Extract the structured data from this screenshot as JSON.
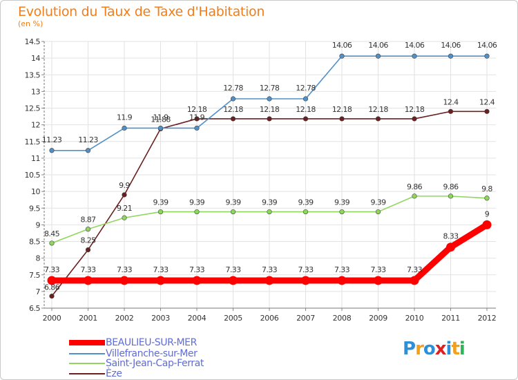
{
  "title": "Evolution du Taux de Taxe d'Habitation",
  "unit_label": "(en %)",
  "logo_text": "Proxiti",
  "chart_data": {
    "type": "line",
    "title": "Evolution du Taux de Taxe d'Habitation",
    "ylabel": "(en %)",
    "xlabel": "",
    "x": [
      "2000",
      "2001",
      "2002",
      "2003",
      "2004",
      "2005",
      "2006",
      "2007",
      "2008",
      "2009",
      "2010",
      "2011",
      "2012"
    ],
    "ylim": [
      6.5,
      14.5
    ],
    "yticks": [
      "6.5",
      "7",
      "7.5",
      "8",
      "8.5",
      "9",
      "9.5",
      "10",
      "10.5",
      "11",
      "11.5",
      "12",
      "12.5",
      "13",
      "13.5",
      "14",
      "14.5"
    ],
    "grid": true,
    "legend_position": "bottom-left",
    "series": [
      {
        "name": "BEAULIEU-SUR-MER",
        "color": "#ff0000",
        "values": [
          7.33,
          7.33,
          7.33,
          7.33,
          7.33,
          7.33,
          7.33,
          7.33,
          7.33,
          7.33,
          7.33,
          8.33,
          9
        ],
        "labels": [
          "7.33",
          "7.33",
          "7.33",
          "7.33",
          "7.33",
          "7.33",
          "7.33",
          "7.33",
          "7.33",
          "7.33",
          "7.33",
          "8.33",
          "9"
        ]
      },
      {
        "name": "Villefranche-sur-Mer",
        "color": "#4f90c9",
        "values": [
          11.23,
          11.23,
          11.9,
          11.9,
          11.9,
          12.78,
          12.78,
          12.78,
          14.06,
          14.06,
          14.06,
          14.06,
          14.06
        ],
        "labels": [
          "11.23",
          "11.23",
          "11.9",
          "11.9",
          "11.9",
          "12.78",
          "12.78",
          "12.78",
          "14.06",
          "14.06",
          "14.06",
          "14.06",
          "14.06"
        ]
      },
      {
        "name": "Saint-Jean-Cap-Ferrat",
        "color": "#8fd65c",
        "values": [
          8.45,
          8.87,
          9.21,
          9.39,
          9.39,
          9.39,
          9.39,
          9.39,
          9.39,
          9.39,
          9.86,
          9.86,
          9.8
        ],
        "labels": [
          "8.45",
          "8.87",
          "9.21",
          "9.39",
          "9.39",
          "9.39",
          "9.39",
          "9.39",
          "9.39",
          "9.39",
          "9.86",
          "9.86",
          "9.8"
        ]
      },
      {
        "name": "Èze",
        "color": "#6b1f1f",
        "values": [
          6.86,
          8.25,
          9.9,
          11.88,
          12.18,
          12.18,
          12.18,
          12.18,
          12.18,
          12.18,
          12.18,
          12.4,
          12.4
        ],
        "labels": [
          "6.86",
          "8.25",
          "9.9",
          "11.88",
          "12.18",
          "12.18",
          "12.18",
          "12.18",
          "12.18",
          "12.18",
          "12.18",
          "12.4",
          "12.4"
        ]
      }
    ]
  }
}
